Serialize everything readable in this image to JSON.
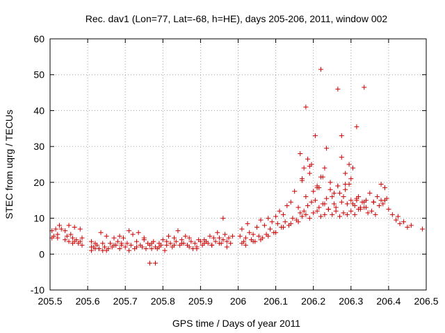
{
  "chart_data": {
    "type": "scatter",
    "title": "Rec. dav1 (Lon=77, Lat=-68, h=HE), days 205-206, 2011, window 002",
    "xlabel": "GPS time / Days of year 2011",
    "ylabel": "STEC from uqrg / TECUs",
    "xlim": [
      205.5,
      206.5
    ],
    "ylim": [
      -10,
      60
    ],
    "xticks": [
      "205.5",
      "205.6",
      "205.7",
      "205.8",
      "205.9",
      "206",
      "206.1",
      "206.2",
      "206.3",
      "206.4",
      "206.5"
    ],
    "yticks": [
      "-10",
      "0",
      "10",
      "20",
      "30",
      "40",
      "50",
      "60"
    ],
    "grid": true,
    "marker": "+",
    "colors": {
      "points": "#cc0000",
      "grid": "#a0a0a0",
      "axes": "#000000"
    },
    "series": [
      {
        "x": [
          205.505,
          205.505,
          205.51,
          205.515,
          205.52,
          205.52,
          205.525,
          205.53,
          205.54,
          205.54,
          205.545,
          205.55,
          205.55,
          205.555,
          205.56,
          205.56,
          205.565,
          205.565,
          205.57,
          205.575,
          205.58,
          205.58,
          205.585,
          205.585,
          205.61,
          205.61,
          205.615,
          205.62,
          205.62,
          205.625,
          205.63,
          205.635,
          205.64,
          205.64,
          205.645,
          205.65,
          205.655,
          205.66,
          205.665,
          205.67,
          205.675,
          205.68,
          205.685,
          205.685,
          205.69,
          205.695,
          205.7,
          205.705,
          205.71,
          205.715,
          205.72,
          205.725,
          205.73,
          205.735,
          205.74,
          205.745,
          205.75,
          205.755,
          205.76,
          205.765,
          205.77,
          205.775,
          205.78,
          205.785,
          205.79,
          205.795,
          205.8,
          205.805,
          205.81,
          205.815,
          205.82,
          205.825,
          205.83,
          205.835,
          205.84,
          205.845,
          205.85,
          205.855,
          205.86,
          205.865,
          205.87,
          205.875,
          205.88,
          205.885,
          205.89,
          205.895,
          205.9,
          205.905,
          205.91,
          205.915,
          205.92,
          205.925,
          205.93,
          205.935,
          205.94,
          205.945,
          205.95,
          205.955,
          205.96,
          205.965,
          205.97,
          205.975,
          205.98,
          205.985,
          205.61,
          205.63,
          205.65,
          205.67,
          205.69,
          205.71,
          205.73,
          205.75,
          205.77,
          205.79,
          205.81,
          205.83,
          205.85,
          205.87,
          205.89,
          205.91,
          205.93,
          205.95,
          205.97,
          205.765,
          205.78,
          205.96,
          206.005,
          206.01,
          206.015,
          206.02,
          206.025,
          206.03,
          206.035,
          206.04,
          206.045,
          206.05,
          206.055,
          206.06,
          206.065,
          206.07,
          206.075,
          206.08,
          206.085,
          206.09,
          206.095,
          206.1,
          206.105,
          206.11,
          206.115,
          206.12,
          206.125,
          206.13,
          206.135,
          206.14,
          206.145,
          206.15,
          206.155,
          206.16,
          206.165,
          206.17,
          206.175,
          206.18,
          206.185,
          206.19,
          206.195,
          206.2,
          206.205,
          206.21,
          206.215,
          206.22,
          206.225,
          206.23,
          206.235,
          206.24,
          206.245,
          206.25,
          206.255,
          206.26,
          206.265,
          206.27,
          206.275,
          206.28,
          206.285,
          206.29,
          206.295,
          206.3,
          206.305,
          206.31,
          206.315,
          206.32,
          206.325,
          206.33,
          206.335,
          206.34,
          206.345,
          206.35,
          206.355,
          206.36,
          206.365,
          206.37,
          206.375,
          206.38,
          206.385,
          206.39,
          206.395,
          206.4,
          206.41,
          206.42,
          206.425,
          206.43,
          206.44,
          206.45,
          206.46,
          206.49,
          206.01,
          206.02,
          206.04,
          206.06,
          206.08,
          206.1,
          206.12,
          206.14,
          206.16,
          206.17,
          206.18,
          206.19,
          206.2,
          206.21,
          206.22,
          206.23,
          206.24,
          206.25,
          206.26,
          206.27,
          206.28,
          206.29,
          206.3,
          206.31,
          206.32,
          206.34,
          206.36,
          206.38,
          206.39,
          206.165,
          206.175,
          206.185,
          206.195,
          206.205,
          206.215,
          206.225,
          206.235,
          206.245,
          206.255,
          206.265,
          206.275,
          206.285,
          206.295,
          206.305,
          206.315,
          206.325,
          206.335,
          206.17,
          206.18,
          206.19,
          206.21,
          206.22,
          206.23,
          206.265,
          206.275,
          206.285,
          206.3,
          206.315,
          206.335
        ],
        "y": [
          6.5,
          4.5,
          5.0,
          7.0,
          5.5,
          4.5,
          8.0,
          7.0,
          6.5,
          4.0,
          5.0,
          8.0,
          3.5,
          5.5,
          4.5,
          3.0,
          7.5,
          3.5,
          4.0,
          3.0,
          7.0,
          3.5,
          2.5,
          4.5,
          3.5,
          1.0,
          2.0,
          3.0,
          1.5,
          2.5,
          1.5,
          6.0,
          3.0,
          1.0,
          2.0,
          5.0,
          1.5,
          3.0,
          2.0,
          4.5,
          2.5,
          3.5,
          1.5,
          5.0,
          2.5,
          4.5,
          2.0,
          3.0,
          6.5,
          2.5,
          5.5,
          1.5,
          3.5,
          6.0,
          2.5,
          2.0,
          4.5,
          1.5,
          3.0,
          2.5,
          1.5,
          3.5,
          2.0,
          1.5,
          3.0,
          2.5,
          4.0,
          1.0,
          2.5,
          5.0,
          3.0,
          2.0,
          4.5,
          3.5,
          6.5,
          2.5,
          4.0,
          3.0,
          5.0,
          2.5,
          4.5,
          3.5,
          1.5,
          3.0,
          2.0,
          4.0,
          3.5,
          2.5,
          4.0,
          3.5,
          3.0,
          5.0,
          2.5,
          4.5,
          3.5,
          6.0,
          4.5,
          3.0,
          4.0,
          5.5,
          3.5,
          4.5,
          3.0,
          5.0,
          2.0,
          1.5,
          1.0,
          2.5,
          3.0,
          1.0,
          2.0,
          4.0,
          3.0,
          2.0,
          3.5,
          2.5,
          3.0,
          2.0,
          1.5,
          3.0,
          2.5,
          3.0,
          2.0,
          -2.5,
          -2.5,
          10.0,
          5.0,
          7.0,
          3.5,
          4.5,
          8.5,
          6.0,
          4.0,
          5.5,
          3.5,
          7.5,
          5.0,
          9.5,
          4.5,
          8.0,
          5.5,
          10.0,
          7.0,
          9.0,
          6.0,
          10.5,
          8.5,
          12.0,
          7.5,
          11.0,
          9.0,
          13.5,
          8.0,
          14.5,
          10.0,
          17.5,
          9.5,
          13.0,
          11.5,
          21.0,
          12.0,
          16.0,
          13.5,
          22.5,
          14.5,
          17.5,
          15.0,
          18.5,
          13.0,
          21.5,
          14.0,
          24.0,
          15.5,
          12.5,
          18.0,
          16.0,
          14.0,
          13.0,
          19.0,
          17.0,
          14.5,
          16.0,
          18.0,
          14.0,
          19.5,
          15.0,
          14.0,
          13.5,
          15.5,
          16.0,
          12.5,
          14.5,
          13.0,
          15.0,
          11.5,
          17.0,
          12.0,
          14.5,
          11.0,
          16.0,
          13.5,
          19.5,
          14.0,
          18.5,
          15.5,
          12.5,
          11.0,
          9.5,
          10.5,
          8.5,
          9.0,
          7.5,
          8.0,
          7.0,
          3.0,
          2.5,
          3.5,
          4.0,
          5.0,
          6.0,
          7.5,
          8.5,
          9.0,
          10.5,
          11.0,
          10.0,
          11.5,
          12.0,
          10.5,
          11.0,
          12.5,
          11.0,
          12.0,
          10.5,
          11.5,
          11.0,
          12.0,
          11.0,
          12.5,
          13.0,
          14.5,
          15.0,
          15.0,
          28.0,
          24.0,
          26.5,
          25.0,
          33.0,
          18.5,
          21.5,
          29.5,
          20.0,
          17.0,
          46.0,
          27.0,
          22.5,
          25.0,
          24.0,
          35.5,
          13.0,
          46.5,
          20.5,
          41.0,
          24.5,
          19.0,
          51.5,
          14.0,
          19.0,
          33.0,
          19.5,
          21.0,
          15.0,
          14.5
        ]
      }
    ]
  }
}
